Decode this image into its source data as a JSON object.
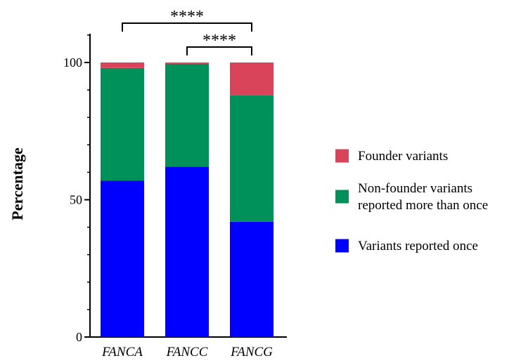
{
  "chart_data": {
    "type": "bar",
    "stacked": true,
    "categories": [
      "FANCA",
      "FANCC",
      "FANCG"
    ],
    "series": [
      {
        "name": "Variants reported once",
        "color": "#0000ff",
        "values": [
          57,
          62,
          42
        ]
      },
      {
        "name": "Non-founder variants reported more than once",
        "color": "#00915a",
        "values": [
          41,
          37.5,
          46
        ]
      },
      {
        "name": "Founder variants",
        "color": "#d9445a",
        "values": [
          2,
          0.5,
          12
        ]
      }
    ],
    "title": "",
    "xlabel": "",
    "ylabel": "Percentage",
    "ylim": [
      0,
      100
    ],
    "yticks": [
      0,
      50,
      100
    ],
    "y_tick_labels": [
      "0",
      "50",
      "100"
    ],
    "grid": false,
    "legend_placement": "right",
    "legend_order": [
      "Founder variants",
      "Non-founder variants reported more than once",
      "Variants reported once"
    ],
    "legend_lines": [
      [
        "Founder variants"
      ],
      [
        "Non-founder variants",
        "reported more than once"
      ],
      [
        "Variants reported once"
      ]
    ],
    "significance": [
      {
        "from": "FANCA",
        "to": "FANCG",
        "label": "****"
      },
      {
        "from": "FANCC",
        "to": "FANCG",
        "label": "****"
      }
    ]
  }
}
